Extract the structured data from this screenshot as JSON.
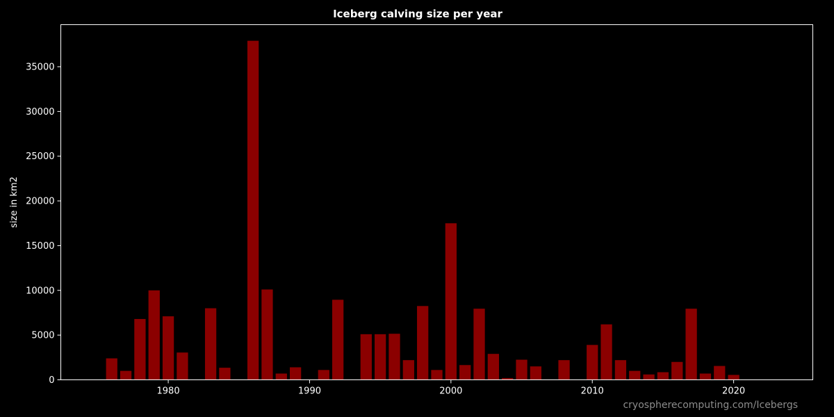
{
  "colors": {
    "background": "#000000",
    "bar": "#8b0000",
    "axis": "#ffffff",
    "credit": "#8c8c8c"
  },
  "credit": "cryospherecomputing.com/Icebergs",
  "chart_data": {
    "type": "bar",
    "title": "Iceberg calving size per year",
    "xlabel": "",
    "ylabel": "size in km2",
    "xlim": [
      1972.4,
      2025.6
    ],
    "ylim": [
      0,
      39700
    ],
    "xticks": [
      1980,
      1990,
      2000,
      2010,
      2020
    ],
    "yticks": [
      0,
      5000,
      10000,
      15000,
      20000,
      25000,
      30000,
      35000
    ],
    "grid": false,
    "x": [
      1976,
      1977,
      1978,
      1979,
      1980,
      1981,
      1983,
      1984,
      1986,
      1987,
      1988,
      1989,
      1991,
      1992,
      1994,
      1995,
      1996,
      1997,
      1998,
      1999,
      2000,
      2001,
      2002,
      2003,
      2004,
      2005,
      2006,
      2008,
      2010,
      2011,
      2012,
      2013,
      2014,
      2015,
      2016,
      2017,
      2018,
      2019,
      2020
    ],
    "values": [
      2400,
      1000,
      6800,
      10000,
      7100,
      3050,
      8000,
      1350,
      37900,
      10100,
      700,
      1400,
      1100,
      8950,
      5100,
      5100,
      5150,
      2200,
      8250,
      1100,
      17500,
      1650,
      7950,
      2900,
      200,
      2250,
      1500,
      2200,
      3900,
      6200,
      2200,
      1000,
      600,
      850,
      2000,
      7950,
      700,
      1550,
      550
    ]
  }
}
